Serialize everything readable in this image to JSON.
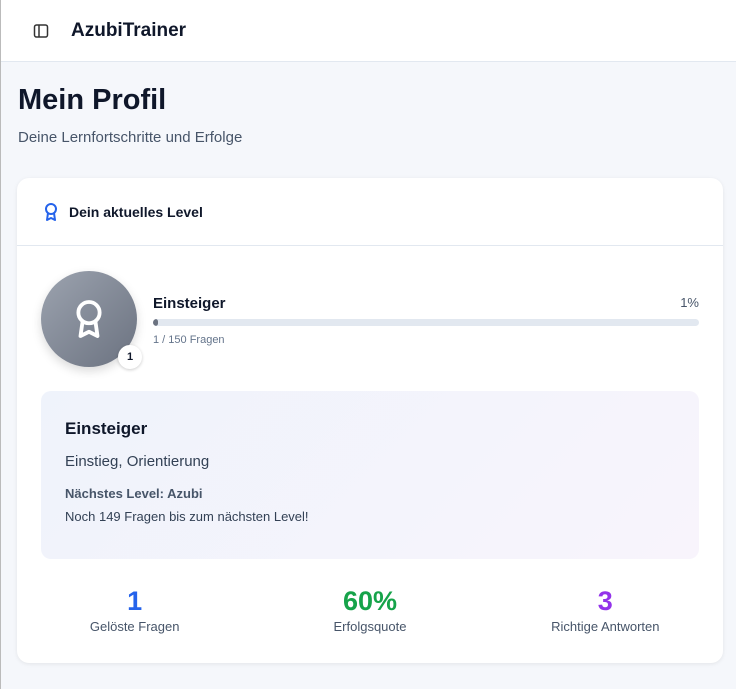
{
  "app": {
    "title": "AzubiTrainer",
    "sidebar_icon": "sidebar-toggle-icon"
  },
  "page": {
    "title": "Mein Profil",
    "subtitle": "Deine Lernfortschritte und Erfolge"
  },
  "level_card": {
    "header": "Dein aktuelles Level",
    "level_number": "1",
    "level_name": "Einsteiger",
    "progress_percent": 1,
    "progress_label": "1%",
    "questions_label": "1 / 150 Fragen",
    "info": {
      "name": "Einsteiger",
      "description": "Einstieg, Orientierung",
      "next_level": "Nächstes Level: Azubi",
      "remaining": "Noch 149 Fragen bis zum nächsten Level!"
    },
    "stats": [
      {
        "value": "1",
        "label": "Gelöste Fragen",
        "color": "#2563eb"
      },
      {
        "value": "60%",
        "label": "Erfolgsquote",
        "color": "#16a34a"
      },
      {
        "value": "3",
        "label": "Richtige Antworten",
        "color": "#9333ea"
      }
    ]
  }
}
